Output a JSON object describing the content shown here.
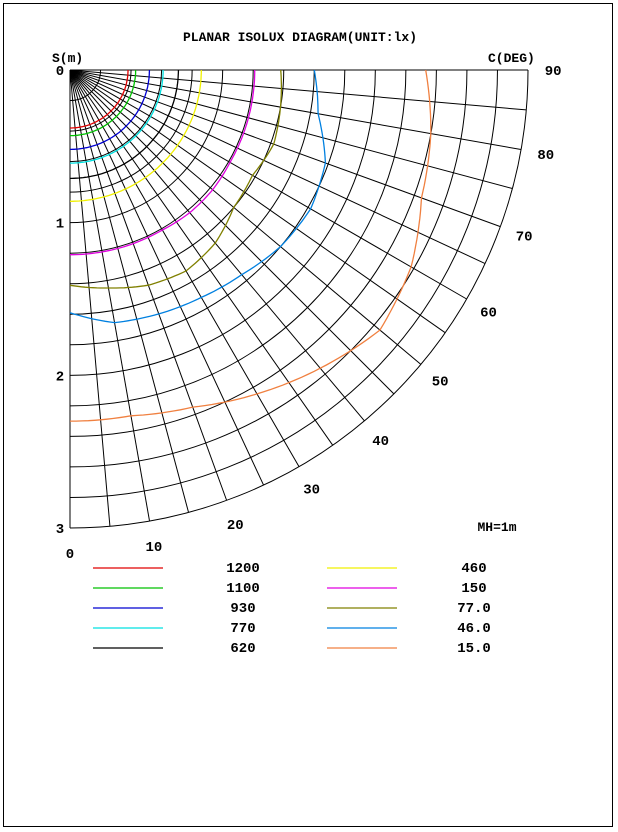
{
  "chart_data": {
    "type": "polar-isolux",
    "title": "PLANAR ISOLUX DIAGRAM(UNIT:lx)",
    "radial_axis_label": "S(m)",
    "angular_axis_label": "C(DEG)",
    "radial_ticks": [
      "0",
      "1",
      "2",
      "3"
    ],
    "angle_ticks": [
      "0",
      "10",
      "20",
      "30",
      "40",
      "50",
      "60",
      "70",
      "80",
      "90"
    ],
    "annotation": "MH=1m",
    "legend": [
      {
        "value": "1200",
        "color": "#e00000"
      },
      {
        "value": "1100",
        "color": "#00c000"
      },
      {
        "value": "930",
        "color": "#0000d0"
      },
      {
        "value": "770",
        "color": "#00e0e0"
      },
      {
        "value": "620",
        "color": "#000000"
      },
      {
        "value": "460",
        "color": "#f0f000"
      },
      {
        "value": "150",
        "color": "#e000e0"
      },
      {
        "value": "77.0",
        "color": "#808000"
      },
      {
        "value": "46.0",
        "color": "#0080e0"
      },
      {
        "value": "15.0",
        "color": "#f08040"
      }
    ],
    "isolines": [
      {
        "value": "1200",
        "color": "#e00000",
        "r": [
          0.38,
          0.38,
          0.38,
          0.38,
          0.38,
          0.38,
          0.38,
          0.38,
          0.38,
          0.38
        ]
      },
      {
        "value": "1100",
        "color": "#00c000",
        "r": [
          0.43,
          0.43,
          0.43,
          0.43,
          0.43,
          0.43,
          0.43,
          0.43,
          0.43,
          0.43
        ]
      },
      {
        "value": "930",
        "color": "#0000d0",
        "r": [
          0.52,
          0.52,
          0.52,
          0.52,
          0.52,
          0.52,
          0.52,
          0.52,
          0.52,
          0.52
        ]
      },
      {
        "value": "770",
        "color": "#00e0e0",
        "r": [
          0.61,
          0.61,
          0.61,
          0.61,
          0.61,
          0.61,
          0.61,
          0.61,
          0.61,
          0.61
        ]
      },
      {
        "value": "620",
        "color": "#000000",
        "r": [
          0.71,
          0.71,
          0.71,
          0.71,
          0.71,
          0.71,
          0.71,
          0.71,
          0.71,
          0.71
        ]
      },
      {
        "value": "460",
        "color": "#f0f000",
        "r": [
          0.86,
          0.86,
          0.86,
          0.86,
          0.86,
          0.86,
          0.86,
          0.86,
          0.86,
          0.86
        ]
      },
      {
        "value": "150",
        "color": "#e000e0",
        "r": [
          1.21,
          1.21,
          1.21,
          1.21,
          1.22,
          1.22,
          1.21,
          1.21,
          1.21,
          1.21
        ]
      },
      {
        "value": "77.0",
        "color": "#808000",
        "r": [
          1.41,
          1.45,
          1.5,
          1.52,
          1.48,
          1.4,
          1.38,
          1.42,
          1.4,
          1.38
        ]
      },
      {
        "value": "46.0",
        "color": "#0080e0",
        "r": [
          1.59,
          1.68,
          1.7,
          1.72,
          1.75,
          1.8,
          1.82,
          1.78,
          1.65,
          1.6
        ]
      },
      {
        "value": "15.0",
        "color": "#f08040",
        "r": [
          2.3,
          2.3,
          2.35,
          2.45,
          2.55,
          2.65,
          2.58,
          2.45,
          2.4,
          2.33
        ]
      }
    ]
  }
}
